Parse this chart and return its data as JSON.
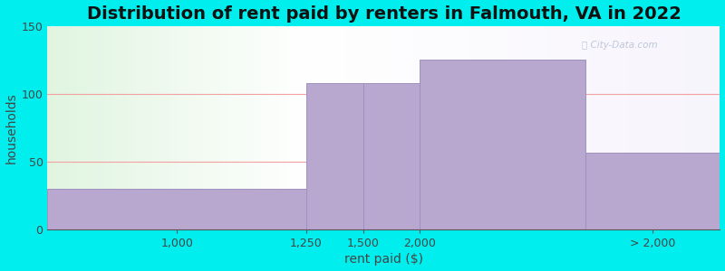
{
  "title": "Distribution of rent paid by renters in Falmouth, VA in 2022",
  "xlabel": "rent paid ($)",
  "ylabel": "households",
  "bar_values": [
    30,
    108,
    108,
    125,
    57
  ],
  "bar_color": "#b8a8d0",
  "bar_edgecolor": "#a090c0",
  "ylim": [
    0,
    150
  ],
  "yticks": [
    0,
    50,
    100,
    150
  ],
  "bg_color": "#00eeee",
  "grid_color": "#f5a0a0",
  "title_fontsize": 14,
  "axis_label_fontsize": 10,
  "tick_fontsize": 9,
  "bar_edges": [
    0.0,
    2.5,
    3.05,
    3.6,
    5.2,
    6.5
  ],
  "tick_positions": [
    1.25,
    2.5,
    3.05,
    3.6,
    5.85
  ],
  "tick_labels": [
    "1,000",
    "1,250",
    "1,500",
    "2,000",
    "> 2,000"
  ],
  "gradient_split": 2.5,
  "xlim": [
    0,
    6.5
  ]
}
